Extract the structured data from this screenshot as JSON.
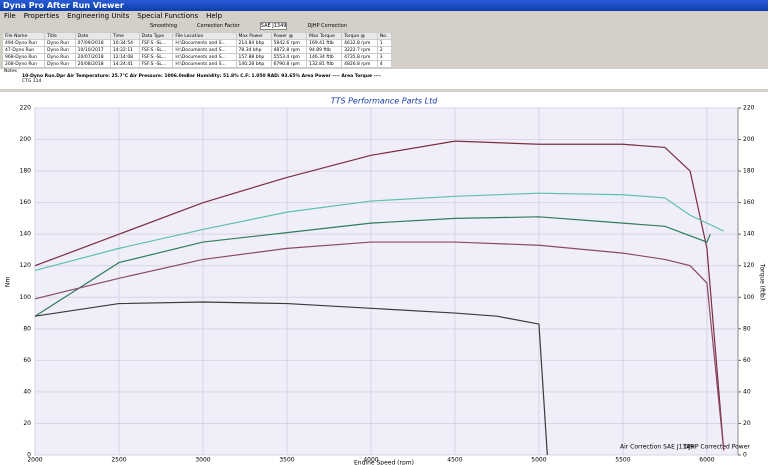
{
  "window": {
    "title": "Dyna Pro After Run Viewer"
  },
  "menu": [
    "File",
    "Properties",
    "Engineering Units",
    "Special Functions",
    "Help"
  ],
  "toolbar": {
    "smoothing": "Smoothing",
    "correction_factor": "Correction Factor",
    "correction_value": "SAE J1349",
    "djhp": "DJHP Correction"
  },
  "table": {
    "columns": [
      "File Name",
      "Title",
      "Date",
      "Time",
      "Data Type",
      "File Location",
      "Max Power",
      "Power @",
      "Max Torque",
      "Torque @",
      "No."
    ],
    "rows": [
      [
        "494-Dyno Run",
        "Dyno Run",
        "07/09/2018",
        "10:34:54",
        "FSF:S -SL...",
        "H:\\Documents and S...",
        "214.84 bhp",
        "5842.6 rpm",
        "169.41 ftlb",
        "4632.8 rpm",
        "1"
      ],
      [
        "47-Dyno Run",
        "Dyno Run",
        "10/10/2017",
        "14:22:11",
        "FSF:S -SL...",
        "H:\\Documents and S...",
        "78.34 bhp",
        "4872.8 rpm",
        "94.89 ftlb",
        "3222.7 rpm",
        "2"
      ],
      [
        "968-Dyno Run",
        "Dyno Run",
        "20/07/2018",
        "12:14:08",
        "FSF:S -SL...",
        "H:\\Documents and S...",
        "157.88 bhp",
        "5553.4 rpm",
        "146.34 ftlb",
        "4735.8 rpm",
        "3"
      ],
      [
        "208-Dyno Run",
        "Dyno Run",
        "20/08/2018",
        "14:24:41",
        "FSF:S -SL...",
        "H:\\Documents and S...",
        "140.28 bhp",
        "6790.8 rpm",
        "132.81 ftlb",
        "4826.8 rpm",
        "4"
      ]
    ]
  },
  "notes": {
    "label": "Notes",
    "line1": "10-Dyno Run.Dpr   Air Temperature: 25.7°C   Air Pressure: 1006.0mBar   Humidity: 51.8%   C.F: 1.050   RAD: 93.65%   Area Power ----   Area Torque ----",
    "line2": "CTG 114"
  },
  "chart_data": {
    "type": "line",
    "title": "TTS Performance Parts Ltd",
    "ylabel": "Nm",
    "y2label": "Torque (ftlb)",
    "xlabel": "Engine Speed (rpm)",
    "annotations": [
      "Air Correction SAE J1349",
      "DJHP Corrected Power"
    ],
    "xlim": [
      2000,
      6185
    ],
    "xticks": [
      2000,
      2500,
      3000,
      3500,
      4000,
      4500,
      5000,
      5500,
      6000
    ],
    "ylim": [
      0,
      220
    ],
    "yticks": [
      0,
      20,
      40,
      60,
      80,
      100,
      120,
      140,
      160,
      180,
      200,
      220
    ],
    "y2lim": [
      0,
      220
    ],
    "y2ticks": [
      0,
      20,
      40,
      60,
      80,
      100,
      120,
      140,
      160,
      180,
      200,
      220
    ],
    "grid": true,
    "series": [
      {
        "color": "#7a2e42",
        "x": [
          2000,
          2500,
          3000,
          3500,
          4000,
          4500,
          5000,
          5500,
          5750,
          5900,
          6000,
          6100
        ],
        "values": [
          120,
          140,
          160,
          176,
          190,
          199,
          197,
          197,
          195,
          180,
          131,
          3
        ]
      },
      {
        "color": "#5cc0b0",
        "x": [
          2000,
          2500,
          3000,
          3500,
          4000,
          4500,
          5000,
          5500,
          5750,
          5900,
          6000,
          6100
        ],
        "values": [
          117,
          131,
          143,
          154,
          161,
          164,
          166,
          165,
          163,
          152,
          147,
          142
        ]
      },
      {
        "color": "#2e7d5a",
        "x": [
          2000,
          2500,
          3000,
          3500,
          4000,
          4500,
          5000,
          5500,
          5750,
          5900,
          6000,
          6020
        ],
        "values": [
          88,
          122,
          135,
          141,
          147,
          150,
          151,
          147,
          145,
          139,
          135,
          140
        ]
      },
      {
        "color": "#8a4a66",
        "x": [
          2000,
          2500,
          3000,
          3500,
          4000,
          4500,
          5000,
          5500,
          5750,
          5900,
          6000,
          6100
        ],
        "values": [
          99,
          112,
          124,
          131,
          135,
          135,
          133,
          128,
          124,
          120,
          109,
          3
        ]
      },
      {
        "color": "#3a3a3a",
        "x": [
          2000,
          2500,
          3000,
          3500,
          4000,
          4500,
          4750,
          5000,
          5050
        ],
        "values": [
          88,
          96,
          97,
          96,
          93,
          90,
          88,
          83,
          0
        ]
      }
    ]
  }
}
